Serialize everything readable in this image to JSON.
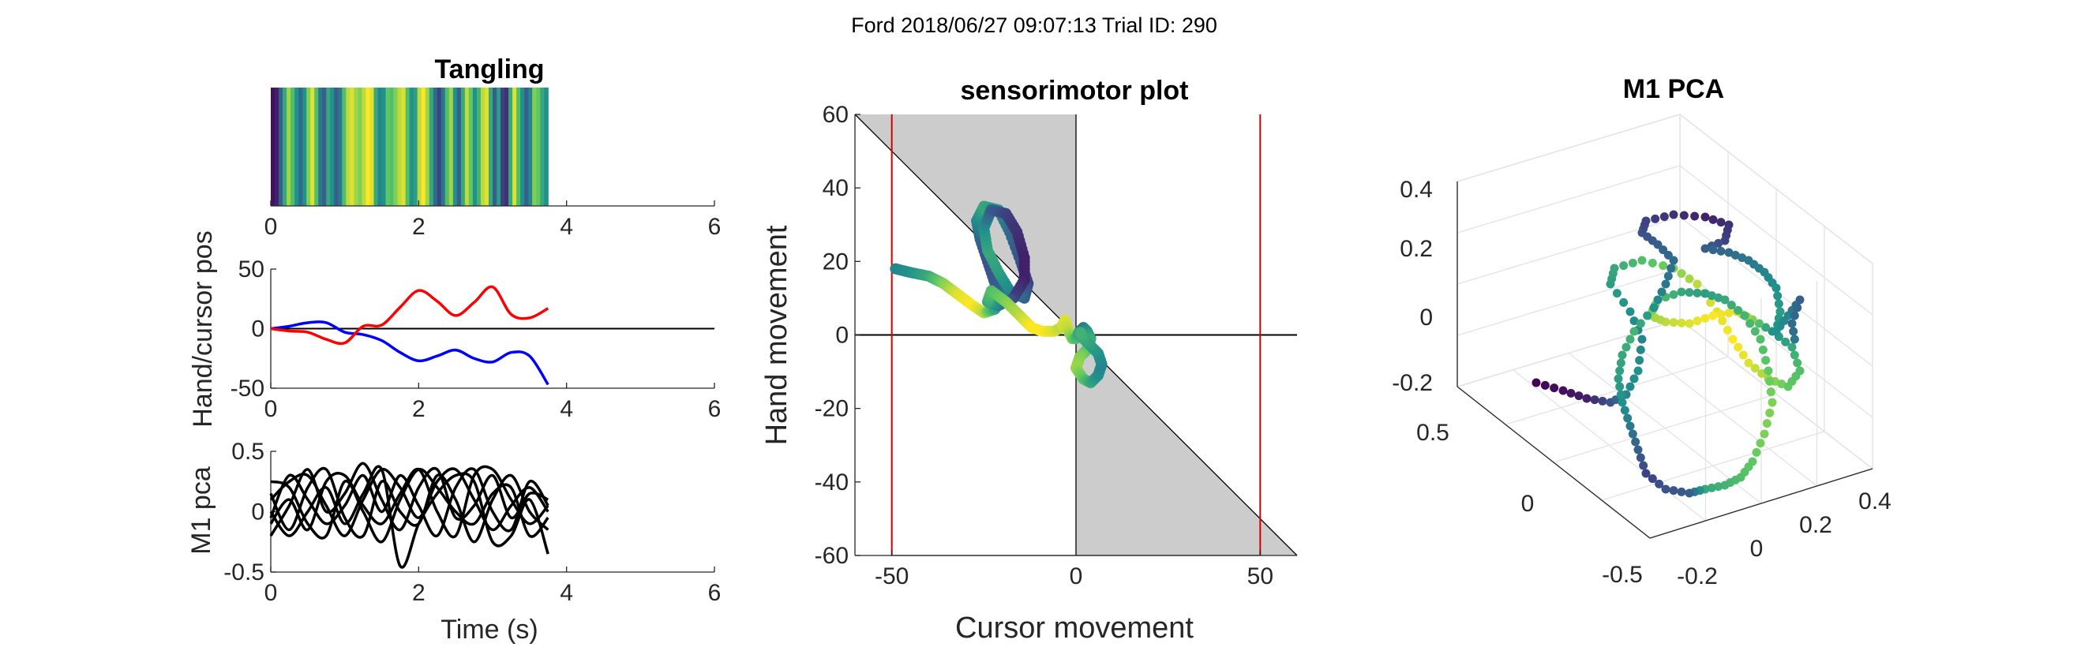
{
  "figure": {
    "suptitle": "Ford 2018/06/27 09:07:13 Trial ID: 290"
  },
  "colors": {
    "hand": "#0000ff",
    "cursor": "#ff0000",
    "limit_line": "#d40000",
    "shade": "#cccccc",
    "viridis": [
      "#440154",
      "#3b528b",
      "#21918c",
      "#5ec962",
      "#fde725"
    ]
  },
  "chart_data": [
    {
      "id": "tangling",
      "type": "heatmap",
      "title": "Tangling",
      "xlim": [
        0,
        6
      ],
      "xticks": [
        "0",
        "2",
        "4",
        "6"
      ],
      "x_extent": [
        0,
        3.75
      ],
      "colormap": "viridis",
      "values": [
        0.05,
        0.1,
        0.3,
        0.6,
        0.85,
        0.7,
        0.5,
        0.35,
        0.5,
        0.8,
        0.95,
        0.7,
        0.4,
        0.3,
        0.6,
        0.5,
        0.3,
        0.4,
        0.7,
        0.9,
        0.95,
        0.85,
        0.8,
        0.9,
        1.0,
        0.95,
        0.6,
        0.45,
        0.5,
        0.75,
        0.7,
        0.8,
        0.9,
        0.95,
        0.7,
        0.5,
        0.55,
        0.9,
        1.0,
        0.85,
        0.6,
        0.35,
        0.2,
        0.4,
        0.7,
        0.85,
        0.5,
        0.3,
        0.6,
        0.9,
        0.75,
        0.5,
        0.65,
        0.9,
        0.95,
        0.6,
        0.3,
        0.55,
        0.2,
        0.15,
        0.6,
        0.95,
        0.7,
        0.5,
        0.3,
        0.45,
        0.8,
        0.75,
        0.6,
        0.5
      ]
    },
    {
      "id": "handcursor",
      "type": "line",
      "ylabel": "Hand/cursor pos",
      "xlim": [
        0,
        6
      ],
      "ylim": [
        -50,
        50
      ],
      "xticks": [
        "0",
        "2",
        "4",
        "6"
      ],
      "yticks": [
        "-50",
        "0",
        "50"
      ],
      "x": [
        0,
        0.25,
        0.5,
        0.75,
        1.0,
        1.25,
        1.5,
        1.75,
        2.0,
        2.25,
        2.5,
        2.75,
        3.0,
        3.25,
        3.5,
        3.75
      ],
      "series": [
        {
          "color": "#0000ff",
          "values": [
            0,
            2,
            5,
            5,
            -3,
            -5,
            -10,
            -20,
            -27,
            -23,
            -18,
            -25,
            -28,
            -20,
            -23,
            -47
          ]
        },
        {
          "color": "#ff0000",
          "values": [
            0,
            -2,
            -3,
            -9,
            -12,
            2,
            3,
            18,
            32,
            23,
            11,
            22,
            35,
            12,
            9,
            17
          ]
        }
      ]
    },
    {
      "id": "m1pca",
      "type": "line",
      "ylabel": "M1 pca",
      "xlabel": "Time (s)",
      "xlim": [
        0,
        6
      ],
      "ylim": [
        -0.5,
        0.5
      ],
      "xticks": [
        "0",
        "2",
        "4",
        "6"
      ],
      "yticks": [
        "-0.5",
        "0",
        "0.5"
      ],
      "x": [
        0,
        0.25,
        0.5,
        0.75,
        1.0,
        1.25,
        1.5,
        1.75,
        2.0,
        2.25,
        2.5,
        2.75,
        3.0,
        3.25,
        3.5,
        3.75
      ],
      "series": [
        {
          "color": "#000000",
          "values": [
            0.1,
            0.25,
            0.3,
            0.05,
            -0.2,
            0.1,
            0.35,
            0.2,
            -0.05,
            0.25,
            0.35,
            0.1,
            -0.15,
            0.05,
            0.2,
            0.0
          ]
        },
        {
          "color": "#000000",
          "values": [
            -0.1,
            0.1,
            -0.15,
            0.25,
            0.3,
            0.05,
            -0.1,
            0.15,
            0.35,
            0.0,
            -0.2,
            0.3,
            0.35,
            0.1,
            -0.1,
            0.05
          ]
        },
        {
          "color": "#000000",
          "values": [
            0.15,
            -0.15,
            0.2,
            0.35,
            -0.05,
            -0.2,
            0.25,
            0.0,
            -0.1,
            0.3,
            0.1,
            -0.25,
            0.1,
            0.3,
            0.0,
            -0.15
          ]
        },
        {
          "color": "#000000",
          "values": [
            -0.2,
            0.05,
            0.35,
            0.0,
            0.15,
            0.4,
            0.1,
            -0.15,
            0.2,
            0.35,
            -0.05,
            0.05,
            0.3,
            -0.05,
            0.15,
            0.1
          ]
        },
        {
          "color": "#000000",
          "values": [
            0.0,
            -0.2,
            0.0,
            0.2,
            -0.1,
            0.15,
            0.35,
            -0.45,
            -0.1,
            0.15,
            0.3,
            0.25,
            -0.25,
            -0.2,
            0.1,
            -0.35
          ]
        },
        {
          "color": "#000000",
          "values": [
            0.25,
            0.2,
            -0.1,
            -0.2,
            0.25,
            0.0,
            -0.25,
            0.1,
            0.35,
            0.2,
            0.0,
            -0.1,
            0.15,
            0.2,
            -0.2,
            -0.05
          ]
        },
        {
          "color": "#000000",
          "values": [
            -0.05,
            0.3,
            0.1,
            -0.1,
            0.05,
            0.3,
            0.0,
            0.3,
            0.05,
            -0.2,
            0.2,
            0.35,
            0.0,
            -0.15,
            0.25,
            0.05
          ]
        }
      ]
    },
    {
      "id": "sensorimotor",
      "type": "scatter",
      "title": "sensorimotor plot",
      "xlabel": "Cursor movement",
      "ylabel": "Hand movement",
      "xlim": [
        -60,
        60
      ],
      "ylim": [
        -60,
        60
      ],
      "xticks": [
        "-50",
        "0",
        "50"
      ],
      "yticks": [
        "-60",
        "-40",
        "-20",
        "0",
        "20",
        "40",
        "60"
      ],
      "limit_lines_x": [
        -50,
        50
      ],
      "shaded_regions": "between y = -x and x = 0",
      "colormap": "viridis",
      "points": [
        [
          -49,
          18,
          0.45
        ],
        [
          -45,
          17,
          0.5
        ],
        [
          -40,
          16,
          0.6
        ],
        [
          -36,
          14,
          0.8
        ],
        [
          -32,
          11,
          0.95
        ],
        [
          -28,
          8,
          1.0
        ],
        [
          -25,
          6,
          0.9
        ],
        [
          -22,
          7,
          0.6
        ],
        [
          -20,
          10,
          0.4
        ],
        [
          -22,
          14,
          0.3
        ],
        [
          -24,
          20,
          0.25
        ],
        [
          -26,
          26,
          0.3
        ],
        [
          -27,
          31,
          0.45
        ],
        [
          -25,
          35,
          0.6
        ],
        [
          -21,
          34,
          0.5
        ],
        [
          -18,
          28,
          0.35
        ],
        [
          -15,
          20,
          0.25
        ],
        [
          -13,
          14,
          0.2
        ],
        [
          -14,
          10,
          0.3
        ],
        [
          -18,
          12,
          0.45
        ],
        [
          -21,
          17,
          0.55
        ],
        [
          -24,
          23,
          0.6
        ],
        [
          -25,
          29,
          0.5
        ],
        [
          -23,
          34,
          0.3
        ],
        [
          -19,
          33,
          0.2
        ],
        [
          -16,
          28,
          0.15
        ],
        [
          -14,
          21,
          0.1
        ],
        [
          -14,
          15,
          0.1
        ],
        [
          -17,
          10,
          0.2
        ],
        [
          -21,
          8,
          0.4
        ],
        [
          -24,
          9,
          0.6
        ],
        [
          -23,
          12,
          0.7
        ],
        [
          -19,
          9,
          0.8
        ],
        [
          -15,
          5,
          0.9
        ],
        [
          -12,
          2,
          1.0
        ],
        [
          -9,
          1,
          1.0
        ],
        [
          -6,
          1,
          0.95
        ],
        [
          -4,
          2,
          0.9
        ],
        [
          -3,
          4,
          0.95
        ],
        [
          -2,
          1,
          0.9
        ],
        [
          -1,
          -1,
          0.8
        ],
        [
          0,
          -1,
          0.7
        ],
        [
          1,
          1,
          0.55
        ],
        [
          2,
          2,
          0.4
        ],
        [
          3,
          1,
          0.5
        ],
        [
          4,
          -1,
          0.6
        ],
        [
          3,
          -4,
          0.7
        ],
        [
          1,
          -6,
          0.8
        ],
        [
          0,
          -9,
          0.85
        ],
        [
          2,
          -12,
          0.75
        ],
        [
          4,
          -13,
          0.6
        ],
        [
          6,
          -11,
          0.5
        ],
        [
          7,
          -8,
          0.45
        ],
        [
          6,
          -5,
          0.5
        ],
        [
          4,
          -3,
          0.55
        ],
        [
          2,
          -1,
          0.6
        ],
        [
          1,
          1,
          0.65
        ]
      ]
    },
    {
      "id": "pca3d",
      "type": "scatter",
      "title": "M1 PCA",
      "zticks": [
        "0.4",
        "0.2",
        "0",
        "-0.2"
      ],
      "xticks": [
        "-0.2",
        "0",
        "0.2",
        "0.4"
      ],
      "yticks": [
        "-0.5",
        "0",
        "0.5"
      ],
      "grid": true,
      "colormap": "viridis"
    }
  ]
}
